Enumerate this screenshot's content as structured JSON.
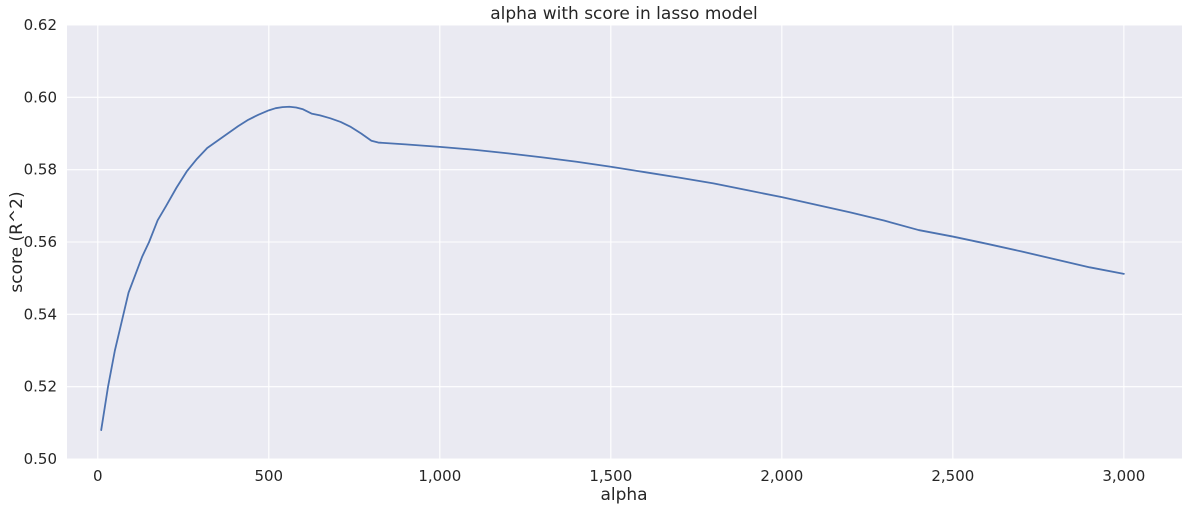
{
  "chart_data": {
    "type": "line",
    "title": "alpha with score in lasso model",
    "xlabel": "alpha",
    "ylabel": "score (R^2)",
    "xlim": [
      -90,
      3170
    ],
    "ylim": [
      0.5,
      0.62
    ],
    "xticks": [
      0,
      500,
      1000,
      1500,
      2000,
      2500,
      3000
    ],
    "xtick_labels": [
      "0",
      "500",
      "1,000",
      "1,500",
      "2,000",
      "2,500",
      "3,000"
    ],
    "yticks": [
      0.5,
      0.52,
      0.54,
      0.56,
      0.58,
      0.6,
      0.62
    ],
    "ytick_labels": [
      "0.50",
      "0.52",
      "0.54",
      "0.56",
      "0.58",
      "0.60",
      "0.62"
    ],
    "grid": true,
    "legend": "none",
    "colors": {
      "line": "#4c72b0",
      "background": "#eaeaf2",
      "grid": "#ffffff"
    },
    "series": [
      {
        "x": [
          10,
          30,
          50,
          70,
          90,
          110,
          130,
          150,
          175,
          200,
          230,
          260,
          290,
          320,
          350,
          380,
          410,
          440,
          470,
          500,
          520,
          540,
          560,
          580,
          600,
          625,
          650,
          680,
          710,
          740,
          770,
          800,
          820,
          850,
          900,
          1000,
          1100,
          1200,
          1300,
          1400,
          1500,
          1600,
          1700,
          1800,
          1900,
          2000,
          2100,
          2200,
          2300,
          2400,
          2500,
          2600,
          2700,
          2800,
          2900,
          3000
        ],
        "y": [
          0.508,
          0.52,
          0.53,
          0.538,
          0.546,
          0.551,
          0.556,
          0.56,
          0.566,
          0.57,
          0.575,
          0.5795,
          0.583,
          0.586,
          0.588,
          0.59,
          0.592,
          0.5938,
          0.5952,
          0.5964,
          0.597,
          0.5973,
          0.5974,
          0.5972,
          0.5967,
          0.5955,
          0.595,
          0.5942,
          0.5932,
          0.5918,
          0.59,
          0.588,
          0.5875,
          0.5873,
          0.587,
          0.5863,
          0.5855,
          0.5845,
          0.5834,
          0.5822,
          0.5808,
          0.5793,
          0.5778,
          0.5762,
          0.5743,
          0.5724,
          0.5703,
          0.5682,
          0.5659,
          0.5633,
          0.5615,
          0.5595,
          0.5574,
          0.5552,
          0.553,
          0.5512
        ]
      }
    ]
  }
}
